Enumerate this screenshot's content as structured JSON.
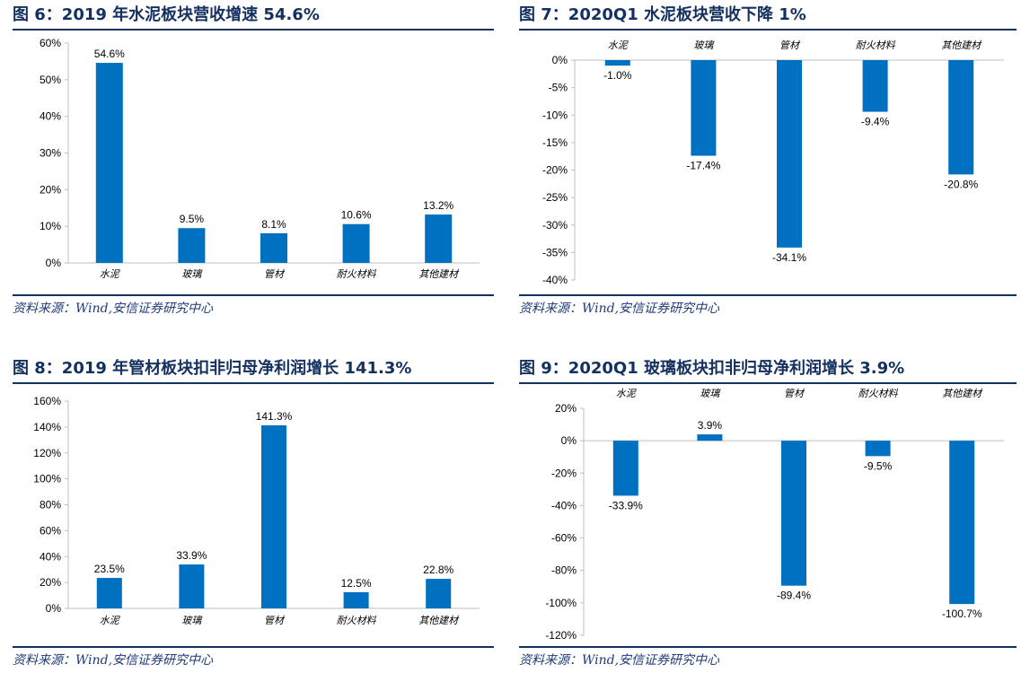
{
  "source": "资料来源：Wind,安信证券研究中心",
  "colors": {
    "bar": "#0070c0",
    "title": "#14305f",
    "axis": "#bfbfbf"
  },
  "figures": [
    {
      "title": "图 6：2019 年水泥板块营收增速 54.6%"
    },
    {
      "title": "图 7：2020Q1 水泥板块营收下降 1%"
    },
    {
      "title": "图 8：2019 年管材板块扣非归母净利润增长 141.3%"
    },
    {
      "title": "图 9：2020Q1 玻璃板块扣非归母净利润增长 3.9%"
    }
  ],
  "chart_data": [
    {
      "type": "bar",
      "title": "图 6：2019 年水泥板块营收增速 54.6%",
      "categories": [
        "水泥",
        "玻璃",
        "管材",
        "耐火材料",
        "其他建材"
      ],
      "values": [
        54.6,
        9.5,
        8.1,
        10.6,
        13.2
      ],
      "value_labels": [
        "54.6%",
        "9.5%",
        "8.1%",
        "10.6%",
        "13.2%"
      ],
      "ylim": [
        0,
        60
      ],
      "yticks": [
        0,
        10,
        20,
        30,
        40,
        50,
        60
      ],
      "ytick_labels": [
        "0%",
        "10%",
        "20%",
        "30%",
        "40%",
        "50%",
        "60%"
      ],
      "category_position": "bottom",
      "grid": false,
      "xlabel": "",
      "ylabel": ""
    },
    {
      "type": "bar",
      "title": "图 7：2020Q1 水泥板块营收下降 1%",
      "categories": [
        "水泥",
        "玻璃",
        "管材",
        "耐火材料",
        "其他建材"
      ],
      "values": [
        -1.0,
        -17.4,
        -34.1,
        -9.4,
        -20.8
      ],
      "value_labels": [
        "-1.0%",
        "-17.4%",
        "-34.1%",
        "-9.4%",
        "-20.8%"
      ],
      "ylim": [
        -40,
        0
      ],
      "yticks": [
        0,
        -5,
        -10,
        -15,
        -20,
        -25,
        -30,
        -35,
        -40
      ],
      "ytick_labels": [
        "0%",
        "-5%",
        "-10%",
        "-15%",
        "-20%",
        "-25%",
        "-30%",
        "-35%",
        "-40%"
      ],
      "category_position": "top",
      "grid": false,
      "xlabel": "",
      "ylabel": ""
    },
    {
      "type": "bar",
      "title": "图 8：2019 年管材板块扣非归母净利润增长 141.3%",
      "categories": [
        "水泥",
        "玻璃",
        "管材",
        "耐火材料",
        "其他建材"
      ],
      "values": [
        23.5,
        33.9,
        141.3,
        12.5,
        22.8
      ],
      "value_labels": [
        "23.5%",
        "33.9%",
        "141.3%",
        "12.5%",
        "22.8%"
      ],
      "ylim": [
        0,
        160
      ],
      "yticks": [
        0,
        20,
        40,
        60,
        80,
        100,
        120,
        140,
        160
      ],
      "ytick_labels": [
        "0%",
        "20%",
        "40%",
        "60%",
        "80%",
        "100%",
        "120%",
        "140%",
        "160%"
      ],
      "category_position": "bottom",
      "grid": false,
      "xlabel": "",
      "ylabel": ""
    },
    {
      "type": "bar",
      "title": "图 9：2020Q1 玻璃板块扣非归母净利润增长 3.9%",
      "categories": [
        "水泥",
        "玻璃",
        "管材",
        "耐火材料",
        "其他建材"
      ],
      "values": [
        -33.9,
        3.9,
        -89.4,
        -9.5,
        -100.7
      ],
      "value_labels": [
        "-33.9%",
        "3.9%",
        "-89.4%",
        "-9.5%",
        "-100.7%"
      ],
      "ylim": [
        -120,
        20
      ],
      "yticks": [
        20,
        0,
        -20,
        -40,
        -60,
        -80,
        -100,
        -120
      ],
      "ytick_labels": [
        "20%",
        "0%",
        "-20%",
        "-40%",
        "-60%",
        "-80%",
        "-100%",
        "-120%"
      ],
      "category_position": "top",
      "grid": false,
      "xlabel": "",
      "ylabel": ""
    }
  ]
}
